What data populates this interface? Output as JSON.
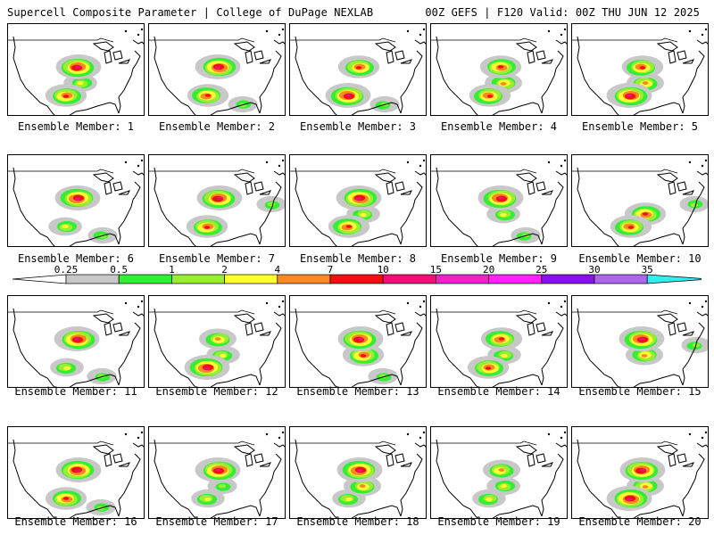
{
  "header": {
    "left_title": "Supercell Composite Parameter | College of DuPage NEXLAB",
    "right_title": "00Z GEFS | F120 Valid: 00Z THU JUN 12 2025"
  },
  "members": [
    {
      "label": "Ensemble Member: 1",
      "hotspots": [
        {
          "region": "north-plains",
          "level": 10
        },
        {
          "region": "south-plains",
          "level": 7
        },
        {
          "region": "mid-mississippi",
          "level": 2
        }
      ]
    },
    {
      "label": "Ensemble Member: 2",
      "hotspots": [
        {
          "region": "north-plains",
          "level": 10
        },
        {
          "region": "south-plains",
          "level": 7
        },
        {
          "region": "southeast",
          "level": 1
        }
      ]
    },
    {
      "label": "Ensemble Member: 3",
      "hotspots": [
        {
          "region": "north-plains",
          "level": 7
        },
        {
          "region": "south-plains",
          "level": 10
        },
        {
          "region": "southeast",
          "level": 1
        }
      ]
    },
    {
      "label": "Ensemble Member: 4",
      "hotspots": [
        {
          "region": "north-plains",
          "level": 7
        },
        {
          "region": "mid-mississippi",
          "level": 4
        },
        {
          "region": "south-plains",
          "level": 7
        }
      ]
    },
    {
      "label": "Ensemble Member: 5",
      "hotspots": [
        {
          "region": "north-plains",
          "level": 7
        },
        {
          "region": "south-plains",
          "level": 10
        },
        {
          "region": "mid-mississippi",
          "level": 4
        }
      ]
    },
    {
      "label": "Ensemble Member: 6",
      "hotspots": [
        {
          "region": "north-plains",
          "level": 10
        },
        {
          "region": "south-plains",
          "level": 2
        },
        {
          "region": "southeast",
          "level": 1
        }
      ]
    },
    {
      "label": "Ensemble Member: 7",
      "hotspots": [
        {
          "region": "north-plains",
          "level": 10
        },
        {
          "region": "south-plains",
          "level": 7
        },
        {
          "region": "mid-atlantic",
          "level": 1
        }
      ]
    },
    {
      "label": "Ensemble Member: 8",
      "hotspots": [
        {
          "region": "north-plains",
          "level": 10
        },
        {
          "region": "south-plains",
          "level": 7
        },
        {
          "region": "mid-mississippi",
          "level": 2
        }
      ]
    },
    {
      "label": "Ensemble Member: 9",
      "hotspots": [
        {
          "region": "north-plains",
          "level": 10
        },
        {
          "region": "mid-mississippi",
          "level": 2
        },
        {
          "region": "southeast",
          "level": 1
        }
      ]
    },
    {
      "label": "Ensemble Member: 10",
      "hotspots": [
        {
          "region": "mid-mississippi",
          "level": 7
        },
        {
          "region": "south-plains",
          "level": 7
        },
        {
          "region": "mid-atlantic",
          "level": 1
        }
      ]
    },
    {
      "label": "Ensemble Member: 11",
      "hotspots": [
        {
          "region": "north-plains",
          "level": 10
        },
        {
          "region": "south-plains",
          "level": 2
        },
        {
          "region": "southeast",
          "level": 1
        }
      ]
    },
    {
      "label": "Ensemble Member: 12",
      "hotspots": [
        {
          "region": "north-plains",
          "level": 4
        },
        {
          "region": "south-plains",
          "level": 10
        },
        {
          "region": "mid-mississippi",
          "level": 2
        }
      ]
    },
    {
      "label": "Ensemble Member: 13",
      "hotspots": [
        {
          "region": "north-plains",
          "level": 10
        },
        {
          "region": "mid-mississippi",
          "level": 7
        },
        {
          "region": "southeast",
          "level": 1
        }
      ]
    },
    {
      "label": "Ensemble Member: 14",
      "hotspots": [
        {
          "region": "north-plains",
          "level": 7
        },
        {
          "region": "south-plains",
          "level": 7
        },
        {
          "region": "mid-mississippi",
          "level": 2
        }
      ]
    },
    {
      "label": "Ensemble Member: 15",
      "hotspots": [
        {
          "region": "north-plains",
          "level": 10
        },
        {
          "region": "mid-mississippi",
          "level": 4
        },
        {
          "region": "mid-atlantic",
          "level": 1
        }
      ]
    },
    {
      "label": "Ensemble Member: 16",
      "hotspots": [
        {
          "region": "north-plains",
          "level": 10
        },
        {
          "region": "south-plains",
          "level": 7
        },
        {
          "region": "southeast",
          "level": 1
        }
      ]
    },
    {
      "label": "Ensemble Member: 17",
      "hotspots": [
        {
          "region": "north-plains",
          "level": 10
        },
        {
          "region": "south-plains",
          "level": 2
        },
        {
          "region": "mid-mississippi",
          "level": 1
        }
      ]
    },
    {
      "label": "Ensemble Member: 18",
      "hotspots": [
        {
          "region": "north-plains",
          "level": 10
        },
        {
          "region": "mid-mississippi",
          "level": 4
        },
        {
          "region": "south-plains",
          "level": 2
        }
      ]
    },
    {
      "label": "Ensemble Member: 19",
      "hotspots": [
        {
          "region": "north-plains",
          "level": 4
        },
        {
          "region": "mid-mississippi",
          "level": 2
        },
        {
          "region": "south-plains",
          "level": 2
        }
      ]
    },
    {
      "label": "Ensemble Member: 20",
      "hotspots": [
        {
          "region": "north-plains",
          "level": 10
        },
        {
          "region": "south-plains",
          "level": 10
        },
        {
          "region": "mid-mississippi",
          "level": 4
        }
      ]
    }
  ],
  "colorbar": {
    "thresholds": [
      "0.25",
      "0.5",
      "1",
      "2",
      "4",
      "7",
      "10",
      "15",
      "20",
      "25",
      "30",
      "35"
    ],
    "colors": [
      "#c8c8c8",
      "#33ee33",
      "#99ee33",
      "#ffff33",
      "#ff8822",
      "#ee1111",
      "#ee1177",
      "#ee22cc",
      "#ff22ff",
      "#8811ee",
      "#aa66ee",
      "#33eeee"
    ]
  }
}
